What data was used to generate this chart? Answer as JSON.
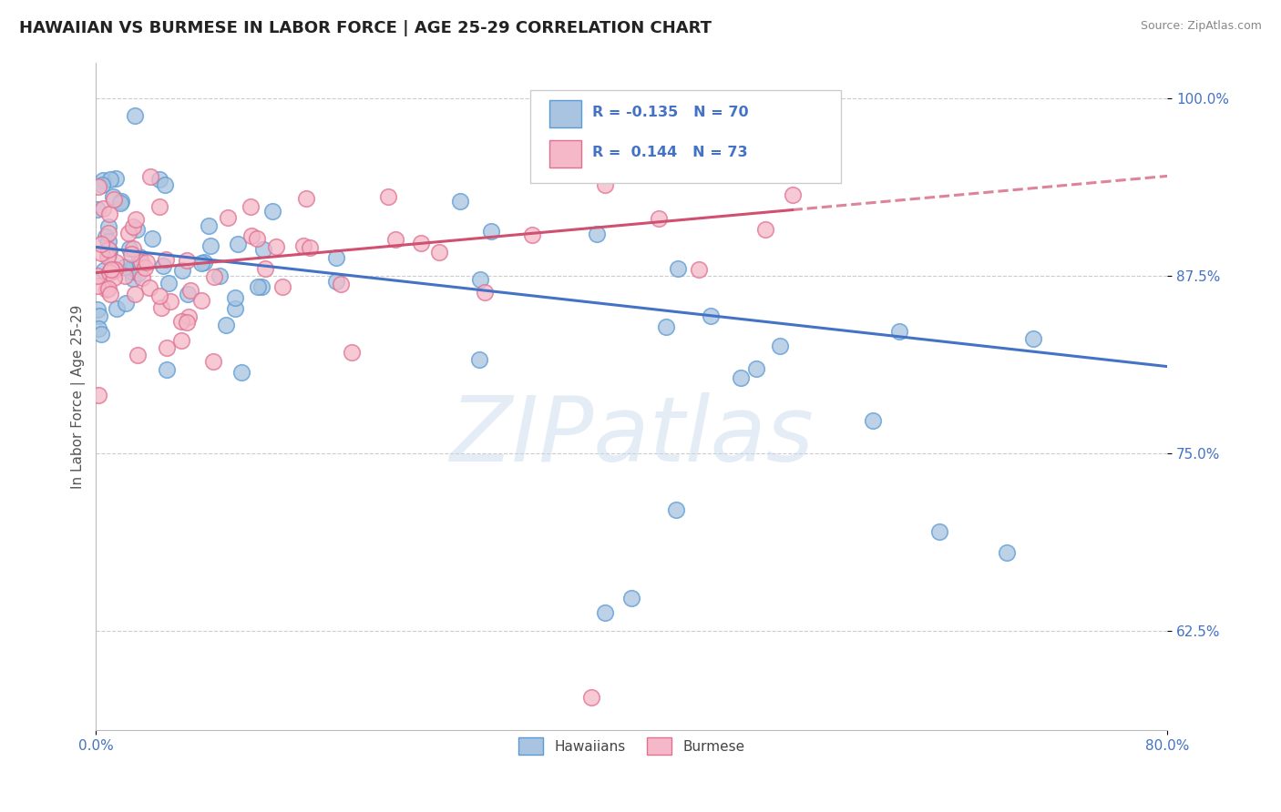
{
  "title": "HAWAIIAN VS BURMESE IN LABOR FORCE | AGE 25-29 CORRELATION CHART",
  "source": "Source: ZipAtlas.com",
  "ylabel": "In Labor Force | Age 25-29",
  "legend_label_blue": "Hawaiians",
  "legend_label_pink": "Burmese",
  "R_blue": -0.135,
  "N_blue": 70,
  "R_pink": 0.144,
  "N_pink": 73,
  "color_blue_fill": "#a8c4e0",
  "color_blue_edge": "#5b9bd5",
  "color_pink_fill": "#f4b8c8",
  "color_pink_edge": "#e07090",
  "color_blue_line": "#4472c4",
  "color_pink_line": "#d05070",
  "color_text_blue": "#4472c4",
  "xlim": [
    0.0,
    0.8
  ],
  "ylim": [
    0.555,
    1.025
  ],
  "yticks": [
    0.625,
    0.75,
    0.875,
    1.0
  ],
  "ytick_labels": [
    "62.5%",
    "75.0%",
    "87.5%",
    "100.0%"
  ],
  "background_color": "#ffffff",
  "grid_color": "#cccccc",
  "watermark": "ZIPatlas",
  "blue_intercept": 0.895,
  "blue_slope": -0.105,
  "pink_intercept": 0.877,
  "pink_slope": 0.085
}
